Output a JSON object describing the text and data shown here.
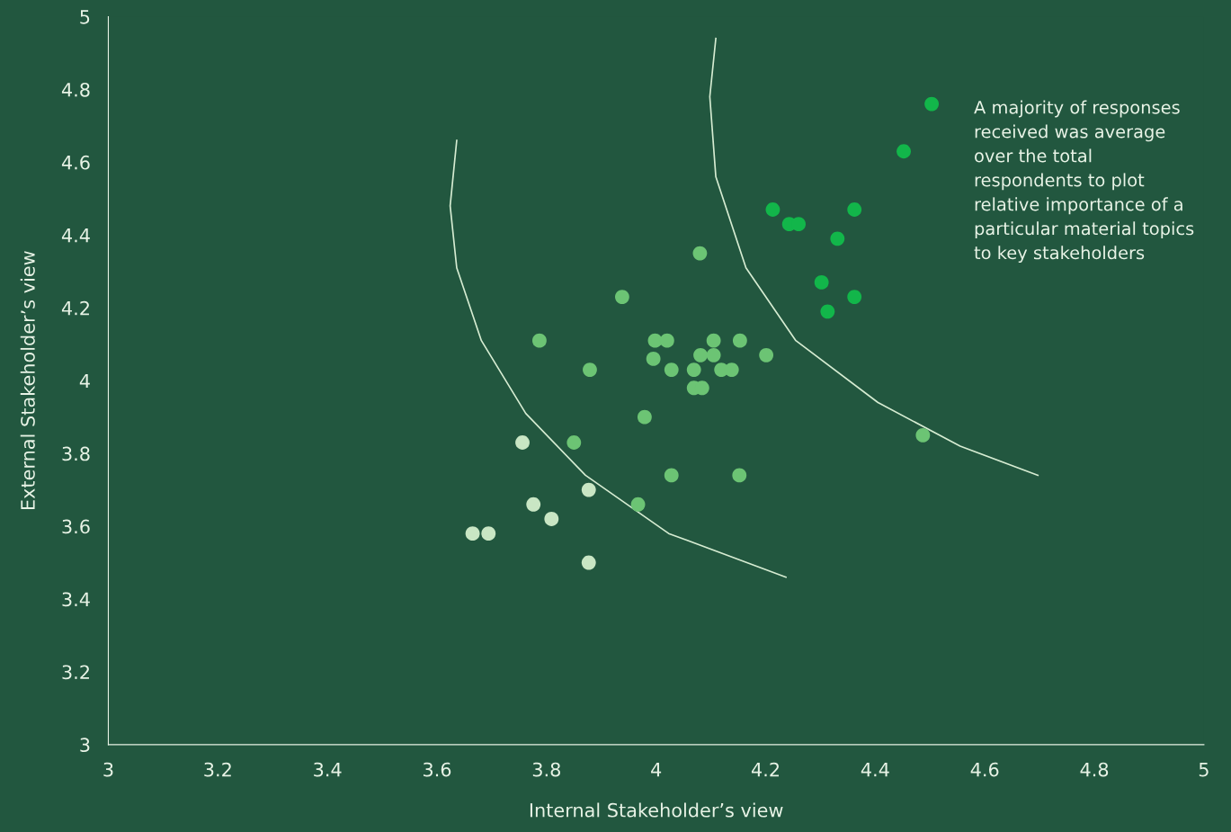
{
  "chart_data": {
    "type": "scatter",
    "xlabel": "Internal Stakeholder’s view",
    "ylabel": "External Stakeholder’s view",
    "annotations": [
      "A majority of responses\nreceived was average\nover the total\nrespondents to plot\nrelative importance of a\nparticular material topics\nto key stakeholders"
    ],
    "xlim": [
      3,
      5
    ],
    "ylim": [
      3,
      5
    ],
    "xticks": [
      3,
      3.2,
      3.4,
      3.6,
      3.8,
      4,
      4.2,
      4.4,
      4.6,
      4.8,
      5
    ],
    "yticks": [
      3,
      3.2,
      3.4,
      3.6,
      3.8,
      4,
      4.2,
      4.4,
      4.6,
      4.8,
      5
    ],
    "grid": false,
    "series": [
      {
        "marker": "circle",
        "color": "#c9e6c4",
        "x": [
          3.665,
          3.694,
          3.756,
          3.776,
          3.809,
          3.877,
          3.877
        ],
        "values": [
          3.58,
          3.58,
          3.83,
          3.66,
          3.62,
          3.7,
          3.5
        ]
      },
      {
        "marker": "circle",
        "color": "#6cc474",
        "x": [
          3.787,
          3.879,
          3.938,
          3.85,
          3.967,
          3.979,
          3.998,
          4.02,
          3.995,
          4.028,
          4.028,
          4.069,
          4.081,
          4.08,
          4.069,
          4.084,
          4.105,
          4.105,
          4.119,
          4.138,
          4.153,
          4.152,
          4.201,
          4.487
        ],
        "values": [
          4.11,
          4.03,
          4.23,
          3.83,
          3.66,
          3.9,
          4.11,
          4.11,
          4.06,
          4.03,
          3.74,
          4.03,
          4.07,
          4.35,
          3.98,
          3.98,
          4.11,
          4.07,
          4.03,
          4.03,
          4.11,
          3.74,
          4.07,
          3.85
        ]
      },
      {
        "marker": "circle",
        "color": "#12b64a",
        "x": [
          4.213,
          4.243,
          4.26,
          4.302,
          4.313,
          4.331,
          4.362,
          4.362,
          4.452,
          4.503
        ],
        "values": [
          4.47,
          4.43,
          4.43,
          4.27,
          4.19,
          4.39,
          4.47,
          4.23,
          4.63,
          4.76
        ]
      },
      {
        "type": "line",
        "marker": "none",
        "color": "#d6ecd2",
        "x": [
          3.636,
          3.624,
          3.636,
          3.681,
          3.762,
          3.871,
          4.023,
          4.237
        ],
        "values": [
          4.66,
          4.48,
          4.31,
          4.11,
          3.91,
          3.74,
          3.58,
          3.46
        ]
      },
      {
        "type": "line",
        "marker": "none",
        "color": "#d6ecd2",
        "x": [
          4.109,
          4.098,
          4.109,
          4.164,
          4.255,
          4.405,
          4.555,
          4.697
        ],
        "values": [
          4.94,
          4.78,
          4.56,
          4.31,
          4.11,
          3.94,
          3.82,
          3.74
        ]
      }
    ]
  }
}
